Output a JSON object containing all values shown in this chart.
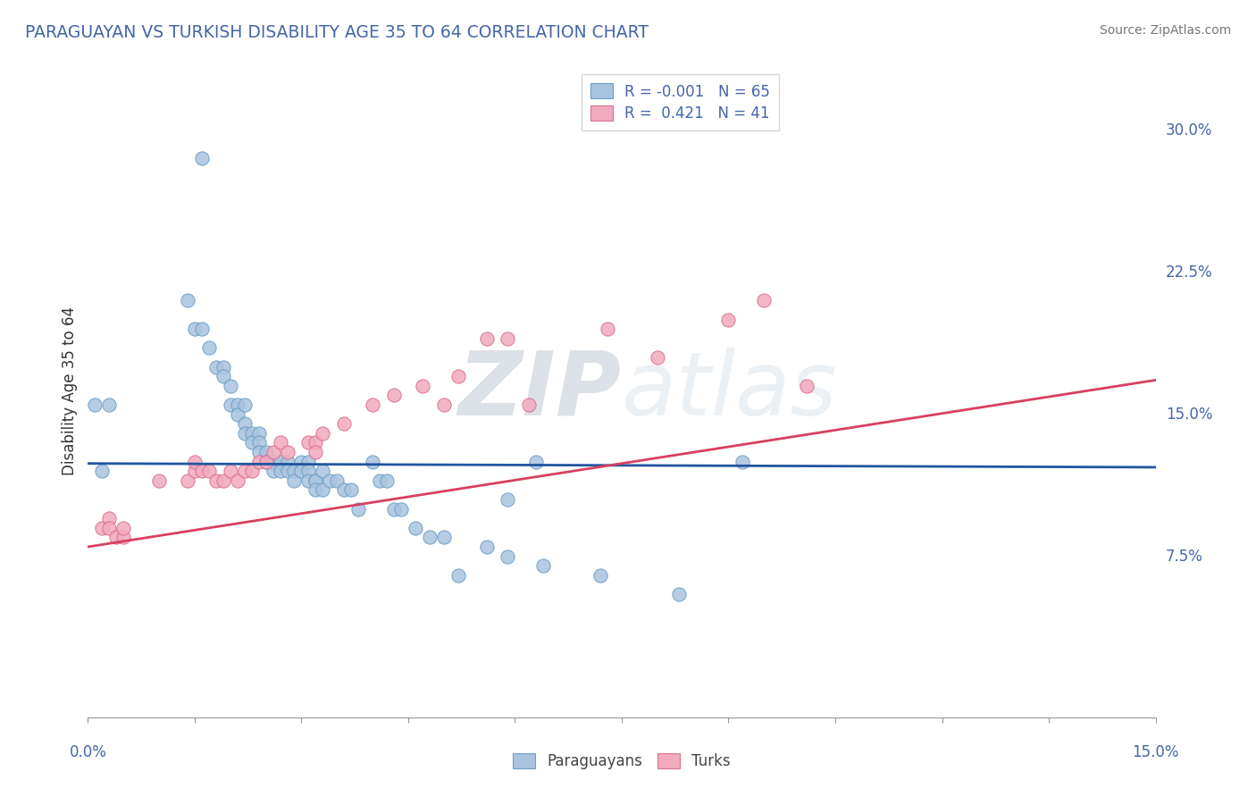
{
  "title": "PARAGUAYAN VS TURKISH DISABILITY AGE 35 TO 64 CORRELATION CHART",
  "source": "Source: ZipAtlas.com",
  "ylabel": "Disability Age 35 to 64",
  "y_tick_labels": [
    "7.5%",
    "15.0%",
    "22.5%",
    "30.0%"
  ],
  "y_tick_vals": [
    0.075,
    0.15,
    0.225,
    0.3
  ],
  "xlim": [
    0.0,
    0.15
  ],
  "ylim": [
    -0.01,
    0.335
  ],
  "blue_color": "#aac4e0",
  "pink_color": "#f2aabe",
  "blue_edge_color": "#6a9fc8",
  "pink_edge_color": "#d97090",
  "blue_line_color": "#2255a0",
  "pink_line_color": "#d84060",
  "watermark_color": "#ccd8e8",
  "title_color": "#4466aa",
  "source_color": "#777777",
  "ylabel_color": "#333333",
  "tick_label_color": "#4466aa",
  "legend_edge_color": "#cccccc",
  "grid_color": "#c8cfd8",
  "blue_x": [
    0.016,
    0.014,
    0.015,
    0.016,
    0.017,
    0.018,
    0.019,
    0.019,
    0.02,
    0.02,
    0.021,
    0.021,
    0.022,
    0.022,
    0.022,
    0.023,
    0.023,
    0.024,
    0.024,
    0.024,
    0.025,
    0.025,
    0.026,
    0.026,
    0.027,
    0.027,
    0.028,
    0.028,
    0.029,
    0.029,
    0.03,
    0.03,
    0.031,
    0.031,
    0.031,
    0.032,
    0.032,
    0.032,
    0.033,
    0.033,
    0.034,
    0.035,
    0.036,
    0.037,
    0.038,
    0.04,
    0.041,
    0.042,
    0.043,
    0.044,
    0.046,
    0.048,
    0.05,
    0.052,
    0.056,
    0.059,
    0.059,
    0.063,
    0.064,
    0.072,
    0.083,
    0.092,
    0.003,
    0.002,
    0.001
  ],
  "blue_y": [
    0.285,
    0.21,
    0.195,
    0.195,
    0.185,
    0.175,
    0.175,
    0.17,
    0.165,
    0.155,
    0.155,
    0.15,
    0.155,
    0.145,
    0.14,
    0.14,
    0.135,
    0.14,
    0.135,
    0.13,
    0.13,
    0.125,
    0.125,
    0.12,
    0.125,
    0.12,
    0.125,
    0.12,
    0.12,
    0.115,
    0.125,
    0.12,
    0.125,
    0.12,
    0.115,
    0.115,
    0.115,
    0.11,
    0.12,
    0.11,
    0.115,
    0.115,
    0.11,
    0.11,
    0.1,
    0.125,
    0.115,
    0.115,
    0.1,
    0.1,
    0.09,
    0.085,
    0.085,
    0.065,
    0.08,
    0.105,
    0.075,
    0.125,
    0.07,
    0.065,
    0.055,
    0.125,
    0.155,
    0.12,
    0.155
  ],
  "pink_x": [
    0.002,
    0.003,
    0.003,
    0.004,
    0.005,
    0.005,
    0.01,
    0.014,
    0.015,
    0.015,
    0.016,
    0.017,
    0.018,
    0.019,
    0.02,
    0.021,
    0.022,
    0.023,
    0.024,
    0.025,
    0.026,
    0.027,
    0.028,
    0.031,
    0.032,
    0.032,
    0.033,
    0.036,
    0.04,
    0.043,
    0.047,
    0.05,
    0.052,
    0.056,
    0.059,
    0.062,
    0.073,
    0.08,
    0.09,
    0.095,
    0.101
  ],
  "pink_y": [
    0.09,
    0.095,
    0.09,
    0.085,
    0.085,
    0.09,
    0.115,
    0.115,
    0.12,
    0.125,
    0.12,
    0.12,
    0.115,
    0.115,
    0.12,
    0.115,
    0.12,
    0.12,
    0.125,
    0.125,
    0.13,
    0.135,
    0.13,
    0.135,
    0.135,
    0.13,
    0.14,
    0.145,
    0.155,
    0.16,
    0.165,
    0.155,
    0.17,
    0.19,
    0.19,
    0.155,
    0.195,
    0.18,
    0.2,
    0.21,
    0.165
  ],
  "blue_trend_x": [
    0.0,
    0.15
  ],
  "blue_trend_y": [
    0.124,
    0.122
  ],
  "pink_trend_x": [
    0.0,
    0.15
  ],
  "pink_trend_y": [
    0.08,
    0.168
  ],
  "dot_size": 120,
  "legend_r1": "R = -0.001",
  "legend_n1": "N = 65",
  "legend_r2": "R =  0.421",
  "legend_n2": "N = 41"
}
